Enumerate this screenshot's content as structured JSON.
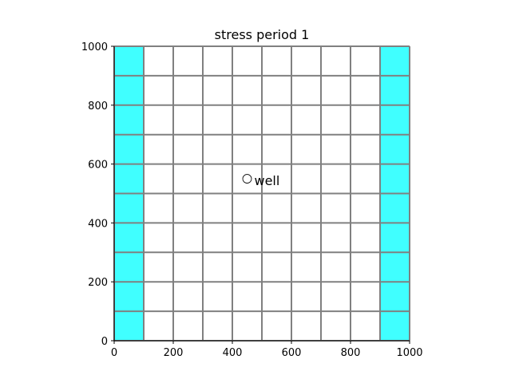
{
  "chart_data": {
    "type": "heatmap",
    "title": "stress period 1",
    "xlabel": "",
    "ylabel": "",
    "xlim": [
      0,
      1000
    ],
    "ylim": [
      0,
      1000
    ],
    "x_ticks": [
      0,
      200,
      400,
      600,
      800,
      1000
    ],
    "y_ticks": [
      0,
      200,
      400,
      600,
      800,
      1000
    ],
    "grid": {
      "ncol": 10,
      "nrow": 10,
      "cell_size": 100,
      "line_color": "#808080"
    },
    "boundary_columns": [
      {
        "x_range": [
          0,
          100
        ],
        "y_range": [
          0,
          1000
        ],
        "color": "#40ffff"
      },
      {
        "x_range": [
          900,
          1000
        ],
        "y_range": [
          0,
          1000
        ],
        "color": "#40ffff"
      }
    ],
    "well": {
      "x": 450,
      "y": 550,
      "label": "well",
      "marker_color": "#ffffff",
      "edge_color": "#000000"
    }
  }
}
